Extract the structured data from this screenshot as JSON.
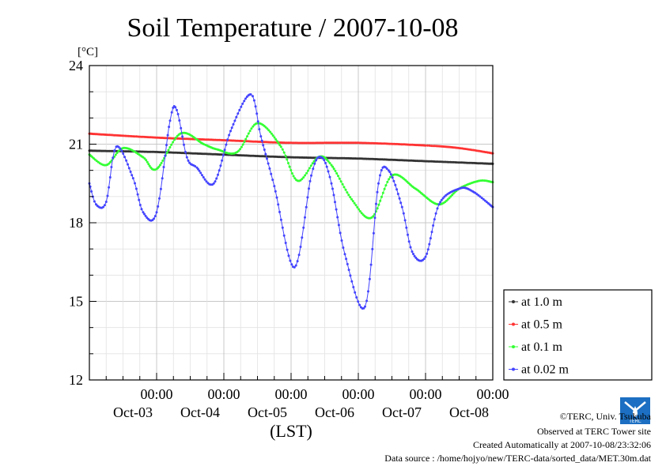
{
  "chart_data": {
    "type": "line",
    "title": "Soil Temperature / 2007-10-08",
    "yunit": "[°C]",
    "xlabel": "(LST)",
    "ylim": [
      12,
      24
    ],
    "xlim": [
      0,
      6
    ],
    "x_unit": "days since 2007-10-02 12:00",
    "yticks": [
      12,
      15,
      18,
      21,
      24
    ],
    "xticks": [
      {
        "x": 1,
        "time": "00:00",
        "date": "Oct-03"
      },
      {
        "x": 2,
        "time": "00:00",
        "date": "Oct-04"
      },
      {
        "x": 3,
        "time": "00:00",
        "date": "Oct-05"
      },
      {
        "x": 4,
        "time": "00:00",
        "date": "Oct-06"
      },
      {
        "x": 5,
        "time": "00:00",
        "date": "Oct-07"
      },
      {
        "x": 6,
        "time": "00:00",
        "date": "Oct-08"
      }
    ],
    "grid": true,
    "legend_position": "right",
    "series": [
      {
        "name": "at 1.0 m",
        "color": "#333333",
        "x": [
          0,
          1,
          2,
          3,
          4,
          5,
          6
        ],
        "y": [
          20.75,
          20.7,
          20.6,
          20.5,
          20.45,
          20.35,
          20.25
        ]
      },
      {
        "name": "at 0.5 m",
        "color": "#ff3333",
        "x": [
          0,
          1,
          2,
          3,
          4,
          5,
          5.5,
          6
        ],
        "y": [
          21.4,
          21.25,
          21.15,
          21.05,
          21.05,
          20.95,
          20.85,
          20.65
        ]
      },
      {
        "name": "at 0.1 m",
        "color": "#33ff33",
        "x": [
          0,
          0.25,
          0.5,
          0.8,
          1.0,
          1.35,
          1.7,
          1.9,
          2.2,
          2.5,
          2.85,
          3.1,
          3.4,
          3.6,
          3.9,
          4.2,
          4.5,
          4.85,
          5.2,
          5.5,
          5.8,
          6.0
        ],
        "y": [
          20.6,
          20.2,
          20.85,
          20.5,
          20.05,
          21.4,
          21.0,
          20.8,
          20.7,
          21.8,
          20.9,
          19.6,
          20.5,
          20.2,
          18.9,
          18.2,
          19.8,
          19.3,
          18.7,
          19.3,
          19.6,
          19.55
        ]
      },
      {
        "name": "at 0.02 m",
        "color": "#4444ff",
        "x": [
          0,
          0.1,
          0.25,
          0.4,
          0.65,
          0.8,
          1.0,
          1.2,
          1.3,
          1.45,
          1.6,
          1.85,
          2.1,
          2.4,
          2.55,
          2.75,
          3.05,
          3.3,
          3.45,
          3.6,
          3.8,
          4.1,
          4.3,
          4.45,
          4.65,
          4.8,
          5.0,
          5.2,
          5.5,
          5.7,
          6.0
        ],
        "y": [
          19.5,
          18.7,
          18.8,
          20.9,
          19.7,
          18.4,
          18.4,
          21.9,
          22.3,
          20.5,
          20.1,
          19.5,
          21.5,
          22.9,
          21.3,
          19.4,
          16.3,
          19.8,
          20.5,
          19.5,
          16.8,
          14.8,
          19.5,
          20.0,
          18.6,
          16.9,
          16.7,
          18.7,
          19.3,
          19.2,
          18.6
        ]
      }
    ]
  },
  "footer": {
    "copyright": "©TERC, Univ. Tsukuba",
    "observed": "Observed at TERC Tower site",
    "created": "Created Automatically at 2007-10-08/23:32:06",
    "source": "Data source : /home/hojyo/new/TERC-data/sorted_data/MET.30m.dat"
  },
  "logo": {
    "text": "TERC"
  }
}
